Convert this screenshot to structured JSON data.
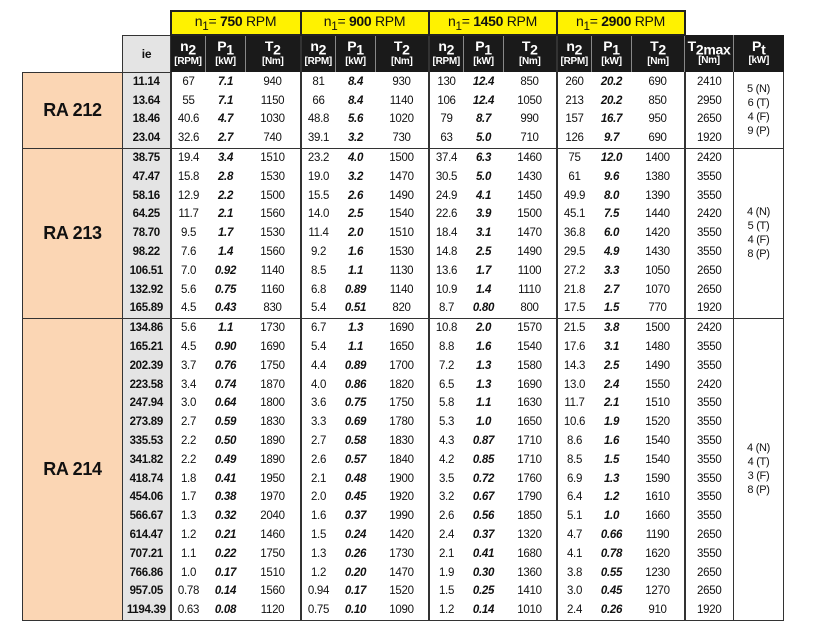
{
  "groups": [
    {
      "prefix": "n",
      "sub": "1",
      "eq": "= ",
      "speed": "750",
      "unit": " RPM"
    },
    {
      "prefix": "n",
      "sub": "1",
      "eq": "= ",
      "speed": "900",
      "unit": " RPM"
    },
    {
      "prefix": "n",
      "sub": "1",
      "eq": "= ",
      "speed": "1450",
      "unit": " RPM"
    },
    {
      "prefix": "n",
      "sub": "1",
      "eq": "= ",
      "speed": "2900",
      "unit": " RPM"
    }
  ],
  "ie_header": "ie",
  "col_headers": [
    {
      "sym": "n",
      "sub": "2",
      "unit": "[RPM]"
    },
    {
      "sym": "P",
      "sub": "1",
      "unit": "[kW]"
    },
    {
      "sym": "T",
      "sub": "2",
      "unit": "[Nm]"
    }
  ],
  "t2max_header": {
    "sym": "T",
    "sub": "2max",
    "unit": "[Nm]"
  },
  "pt_header": {
    "sym": "P",
    "sub": "t",
    "unit": "[kW]"
  },
  "colors": {
    "yellow": "#fff200",
    "model": "#fbd6b4",
    "ie": "#e4e4e4",
    "header": "#1a1a1a"
  },
  "models": [
    {
      "name": "RA 212",
      "pt": "5 (N)\n6 (T)\n4 (F)\n9 (P)",
      "rows": [
        [
          "11.14",
          "67",
          "7.1",
          "940",
          "81",
          "8.4",
          "930",
          "130",
          "12.4",
          "850",
          "260",
          "20.2",
          "690",
          "2410"
        ],
        [
          "13.64",
          "55",
          "7.1",
          "1150",
          "66",
          "8.4",
          "1140",
          "106",
          "12.4",
          "1050",
          "213",
          "20.2",
          "850",
          "2950"
        ],
        [
          "18.46",
          "40.6",
          "4.7",
          "1030",
          "48.8",
          "5.6",
          "1020",
          "79",
          "8.7",
          "990",
          "157",
          "16.7",
          "950",
          "2650"
        ],
        [
          "23.04",
          "32.6",
          "2.7",
          "740",
          "39.1",
          "3.2",
          "730",
          "63",
          "5.0",
          "710",
          "126",
          "9.7",
          "690",
          "1920"
        ]
      ]
    },
    {
      "name": "RA 213",
      "pt": "4 (N)\n5 (T)\n4 (F)\n8 (P)",
      "rows": [
        [
          "38.75",
          "19.4",
          "3.4",
          "1510",
          "23.2",
          "4.0",
          "1500",
          "37.4",
          "6.3",
          "1460",
          "75",
          "12.0",
          "1400",
          "2420"
        ],
        [
          "47.47",
          "15.8",
          "2.8",
          "1530",
          "19.0",
          "3.2",
          "1470",
          "30.5",
          "5.0",
          "1430",
          "61",
          "9.6",
          "1380",
          "3550"
        ],
        [
          "58.16",
          "12.9",
          "2.2",
          "1500",
          "15.5",
          "2.6",
          "1490",
          "24.9",
          "4.1",
          "1450",
          "49.9",
          "8.0",
          "1390",
          "3550"
        ],
        [
          "64.25",
          "11.7",
          "2.1",
          "1560",
          "14.0",
          "2.5",
          "1540",
          "22.6",
          "3.9",
          "1500",
          "45.1",
          "7.5",
          "1440",
          "2420"
        ],
        [
          "78.70",
          "9.5",
          "1.7",
          "1530",
          "11.4",
          "2.0",
          "1510",
          "18.4",
          "3.1",
          "1470",
          "36.8",
          "6.0",
          "1420",
          "3550"
        ],
        [
          "98.22",
          "7.6",
          "1.4",
          "1560",
          "9.2",
          "1.6",
          "1530",
          "14.8",
          "2.5",
          "1490",
          "29.5",
          "4.9",
          "1430",
          "3550"
        ],
        [
          "106.51",
          "7.0",
          "0.92",
          "1140",
          "8.5",
          "1.1",
          "1130",
          "13.6",
          "1.7",
          "1100",
          "27.2",
          "3.3",
          "1050",
          "2650"
        ],
        [
          "132.92",
          "5.6",
          "0.75",
          "1160",
          "6.8",
          "0.89",
          "1140",
          "10.9",
          "1.4",
          "1110",
          "21.8",
          "2.7",
          "1070",
          "2650"
        ],
        [
          "165.89",
          "4.5",
          "0.43",
          "830",
          "5.4",
          "0.51",
          "820",
          "8.7",
          "0.80",
          "800",
          "17.5",
          "1.5",
          "770",
          "1920"
        ]
      ]
    },
    {
      "name": "RA 214",
      "pt": "4 (N)\n4 (T)\n3 (F)\n8 (P)",
      "rows": [
        [
          "134.86",
          "5.6",
          "1.1",
          "1730",
          "6.7",
          "1.3",
          "1690",
          "10.8",
          "2.0",
          "1570",
          "21.5",
          "3.8",
          "1500",
          "2420"
        ],
        [
          "165.21",
          "4.5",
          "0.90",
          "1690",
          "5.4",
          "1.1",
          "1650",
          "8.8",
          "1.6",
          "1540",
          "17.6",
          "3.1",
          "1480",
          "3550"
        ],
        [
          "202.39",
          "3.7",
          "0.76",
          "1750",
          "4.4",
          "0.89",
          "1700",
          "7.2",
          "1.3",
          "1580",
          "14.3",
          "2.5",
          "1490",
          "3550"
        ],
        [
          "223.58",
          "3.4",
          "0.74",
          "1870",
          "4.0",
          "0.86",
          "1820",
          "6.5",
          "1.3",
          "1690",
          "13.0",
          "2.4",
          "1550",
          "2420"
        ],
        [
          "247.94",
          "3.0",
          "0.64",
          "1800",
          "3.6",
          "0.75",
          "1750",
          "5.8",
          "1.1",
          "1630",
          "11.7",
          "2.1",
          "1510",
          "3550"
        ],
        [
          "273.89",
          "2.7",
          "0.59",
          "1830",
          "3.3",
          "0.69",
          "1780",
          "5.3",
          "1.0",
          "1650",
          "10.6",
          "1.9",
          "1520",
          "3550"
        ],
        [
          "335.53",
          "2.2",
          "0.50",
          "1890",
          "2.7",
          "0.58",
          "1830",
          "4.3",
          "0.87",
          "1710",
          "8.6",
          "1.6",
          "1540",
          "3550"
        ],
        [
          "341.82",
          "2.2",
          "0.49",
          "1890",
          "2.6",
          "0.57",
          "1840",
          "4.2",
          "0.85",
          "1710",
          "8.5",
          "1.5",
          "1540",
          "3550"
        ],
        [
          "418.74",
          "1.8",
          "0.41",
          "1950",
          "2.1",
          "0.48",
          "1900",
          "3.5",
          "0.72",
          "1760",
          "6.9",
          "1.3",
          "1590",
          "3550"
        ],
        [
          "454.06",
          "1.7",
          "0.38",
          "1970",
          "2.0",
          "0.45",
          "1920",
          "3.2",
          "0.67",
          "1790",
          "6.4",
          "1.2",
          "1610",
          "3550"
        ],
        [
          "566.67",
          "1.3",
          "0.32",
          "2040",
          "1.6",
          "0.37",
          "1990",
          "2.6",
          "0.56",
          "1850",
          "5.1",
          "1.0",
          "1660",
          "3550"
        ],
        [
          "614.47",
          "1.2",
          "0.21",
          "1460",
          "1.5",
          "0.24",
          "1420",
          "2.4",
          "0.37",
          "1320",
          "4.7",
          "0.66",
          "1190",
          "2650"
        ],
        [
          "707.21",
          "1.1",
          "0.22",
          "1750",
          "1.3",
          "0.26",
          "1730",
          "2.1",
          "0.41",
          "1680",
          "4.1",
          "0.78",
          "1620",
          "3550"
        ],
        [
          "766.86",
          "1.0",
          "0.17",
          "1510",
          "1.2",
          "0.20",
          "1470",
          "1.9",
          "0.30",
          "1360",
          "3.8",
          "0.55",
          "1230",
          "2650"
        ],
        [
          "957.05",
          "0.78",
          "0.14",
          "1560",
          "0.94",
          "0.17",
          "1520",
          "1.5",
          "0.25",
          "1410",
          "3.0",
          "0.45",
          "1270",
          "2650"
        ],
        [
          "1194.39",
          "0.63",
          "0.08",
          "1120",
          "0.75",
          "0.10",
          "1090",
          "1.2",
          "0.14",
          "1010",
          "2.4",
          "0.26",
          "910",
          "1920"
        ]
      ]
    }
  ]
}
